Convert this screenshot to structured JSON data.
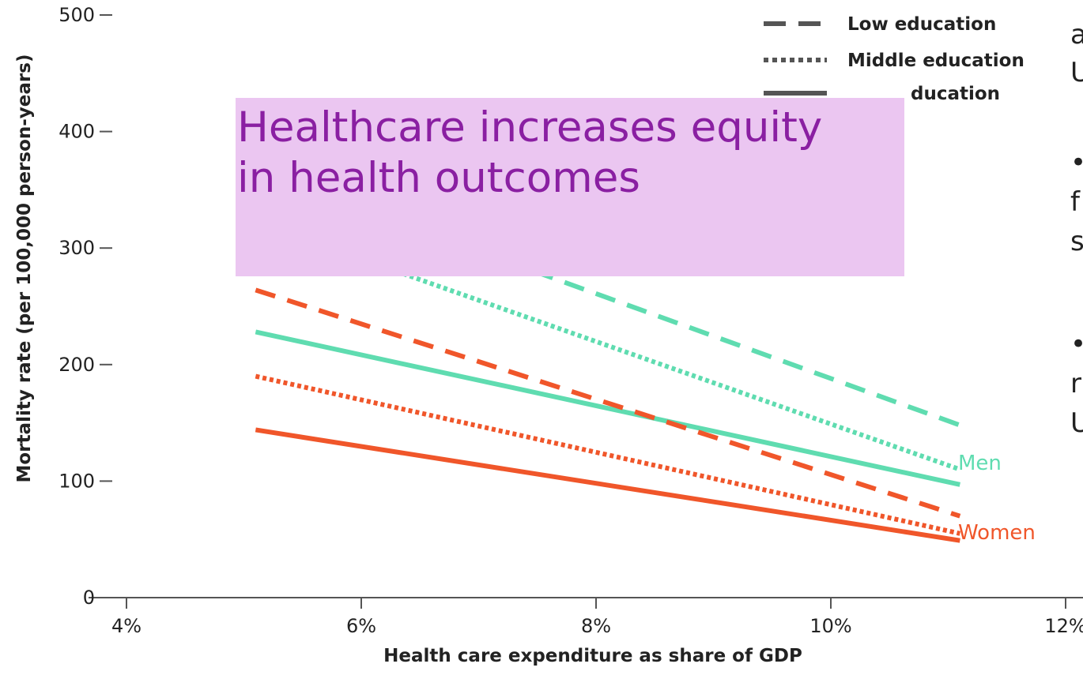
{
  "overlay": {
    "title": "Healthcare increases equity in health outcomes"
  },
  "side_fragments": [
    "a",
    "U",
    "•",
    "f",
    "s",
    "•",
    "r",
    "U"
  ],
  "colors": {
    "men": "#5fdcb0",
    "women": "#f0562a",
    "legend_gray": "#555555",
    "overlay_bg": "#ebc6f1",
    "overlay_text": "#8a1fa2"
  },
  "chart_data": {
    "type": "line",
    "xlabel": "Health care expenditure as share of GDP",
    "ylabel": "Mortality rate (per 100,000 person-years)",
    "xlim": [
      4,
      12
    ],
    "ylim": [
      0,
      500
    ],
    "x_ticks": [
      4,
      6,
      8,
      10,
      12
    ],
    "x_tick_labels": [
      "4%",
      "6%",
      "8%",
      "10%",
      "12%"
    ],
    "y_ticks": [
      0,
      100,
      200,
      300,
      400,
      500
    ],
    "y_tick_labels": [
      "0",
      "100",
      "200",
      "300",
      "400",
      "500"
    ],
    "legend": [
      {
        "label": "Low education",
        "style": "dashed"
      },
      {
        "label": "Middle education",
        "style": "dotted"
      },
      {
        "label": "High education",
        "style": "solid",
        "visible_text": "ducation"
      }
    ],
    "series_labels": [
      {
        "text": "Men",
        "group": "men"
      },
      {
        "text": "Women",
        "group": "women"
      }
    ],
    "series": [
      {
        "group": "men",
        "education": "low",
        "style": "dashed",
        "x": [
          7.2,
          11.1
        ],
        "y": [
          290,
          148
        ]
      },
      {
        "group": "men",
        "education": "middle",
        "style": "dotted",
        "x": [
          6.3,
          11.1
        ],
        "y": [
          280,
          110
        ]
      },
      {
        "group": "men",
        "education": "high",
        "style": "solid",
        "x": [
          5.1,
          11.1
        ],
        "y": [
          228,
          97
        ]
      },
      {
        "group": "women",
        "education": "low",
        "style": "dashed",
        "x": [
          5.1,
          11.1
        ],
        "y": [
          264,
          70
        ]
      },
      {
        "group": "women",
        "education": "middle",
        "style": "dotted",
        "x": [
          5.1,
          11.1
        ],
        "y": [
          190,
          55
        ]
      },
      {
        "group": "women",
        "education": "high",
        "style": "solid",
        "x": [
          5.1,
          11.1
        ],
        "y": [
          144,
          49
        ]
      }
    ]
  }
}
